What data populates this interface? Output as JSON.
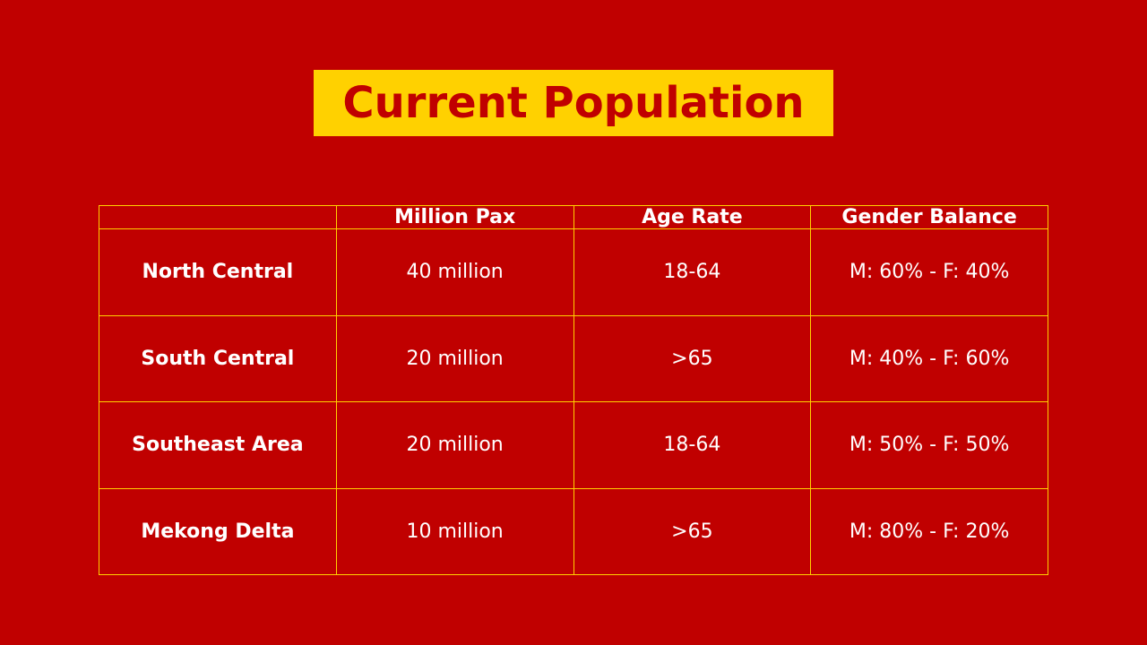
{
  "slide": {
    "title": "Current Population",
    "colors": {
      "background": "#c00000",
      "title_box": "#ffd100",
      "title_text": "#c00000",
      "table_border": "#ffd100",
      "table_text": "#ffffff"
    }
  },
  "table": {
    "headers": [
      "",
      "Million Pax",
      "Age Rate",
      "Gender Balance"
    ],
    "rows": [
      {
        "region": "North Central",
        "million_pax": "40 million",
        "age_rate": "18-64",
        "gender_balance": "M: 60% - F: 40%"
      },
      {
        "region": "South Central",
        "million_pax": "20 million",
        "age_rate": ">65",
        "gender_balance": "M: 40% - F: 60%"
      },
      {
        "region": "Southeast Area",
        "million_pax": "20 million",
        "age_rate": "18-64",
        "gender_balance": "M: 50% - F: 50%"
      },
      {
        "region": "Mekong Delta",
        "million_pax": "10 million",
        "age_rate": ">65",
        "gender_balance": "M: 80% - F: 20%"
      }
    ]
  }
}
